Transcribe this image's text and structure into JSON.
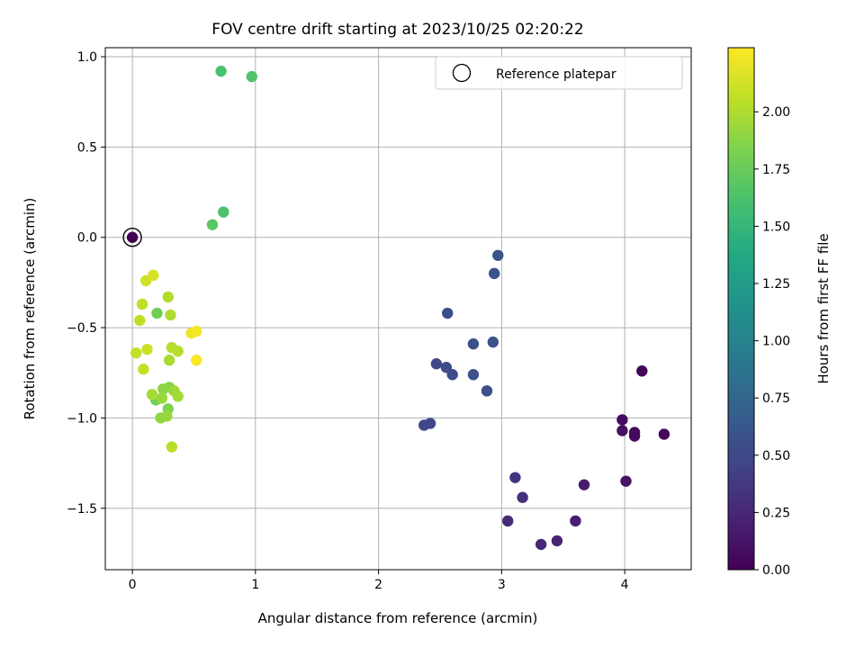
{
  "chart_data": {
    "type": "scatter",
    "title": "FOV centre drift starting at 2023/10/25 02:20:22",
    "xlabel": "Angular distance from reference (arcmin)",
    "ylabel": "Rotation from reference (arcmin)",
    "xlim": [
      -0.22,
      4.54
    ],
    "ylim": [
      -1.84,
      1.05
    ],
    "xticks": [
      "0",
      "1",
      "2",
      "3",
      "4"
    ],
    "yticks": [
      "−1.5",
      "−1.0",
      "−0.5",
      "0.0",
      "0.5",
      "1.0"
    ],
    "grid": true,
    "legend": {
      "position": "top-right",
      "label": "Reference platepar"
    },
    "reference_point": {
      "x": 0.0,
      "y": 0.0
    },
    "colorbar": {
      "label": "Hours from first FF file",
      "colormap": "viridis",
      "range": [
        0.0,
        2.28
      ],
      "ticks": [
        "0.00",
        "0.25",
        "0.50",
        "0.75",
        "1.00",
        "1.25",
        "1.50",
        "1.75",
        "2.00"
      ]
    },
    "points": [
      {
        "x": 4.14,
        "y": -0.74,
        "c": 0.02
      },
      {
        "x": 4.32,
        "y": -1.09,
        "c": 0.03
      },
      {
        "x": 4.08,
        "y": -1.08,
        "c": 0.05
      },
      {
        "x": 4.08,
        "y": -1.1,
        "c": 0.06
      },
      {
        "x": 3.98,
        "y": -1.01,
        "c": 0.08
      },
      {
        "x": 3.98,
        "y": -1.07,
        "c": 0.09
      },
      {
        "x": 4.01,
        "y": -1.35,
        "c": 0.12
      },
      {
        "x": 3.67,
        "y": -1.37,
        "c": 0.16
      },
      {
        "x": 3.6,
        "y": -1.57,
        "c": 0.2
      },
      {
        "x": 3.45,
        "y": -1.68,
        "c": 0.22
      },
      {
        "x": 3.32,
        "y": -1.7,
        "c": 0.24
      },
      {
        "x": 3.05,
        "y": -1.57,
        "c": 0.28
      },
      {
        "x": 3.17,
        "y": -1.44,
        "c": 0.31
      },
      {
        "x": 3.11,
        "y": -1.33,
        "c": 0.34
      },
      {
        "x": 2.37,
        "y": -1.04,
        "c": 0.48
      },
      {
        "x": 2.42,
        "y": -1.03,
        "c": 0.49
      },
      {
        "x": 2.47,
        "y": -0.7,
        "c": 0.51
      },
      {
        "x": 2.55,
        "y": -0.72,
        "c": 0.52
      },
      {
        "x": 2.6,
        "y": -0.76,
        "c": 0.53
      },
      {
        "x": 2.56,
        "y": -0.42,
        "c": 0.54
      },
      {
        "x": 2.77,
        "y": -0.59,
        "c": 0.55
      },
      {
        "x": 2.77,
        "y": -0.76,
        "c": 0.56
      },
      {
        "x": 2.88,
        "y": -0.85,
        "c": 0.56
      },
      {
        "x": 2.93,
        "y": -0.58,
        "c": 0.57
      },
      {
        "x": 2.94,
        "y": -0.2,
        "c": 0.58
      },
      {
        "x": 2.97,
        "y": -0.1,
        "c": 0.59
      },
      {
        "x": 0.72,
        "y": 0.92,
        "c": 1.62
      },
      {
        "x": 0.97,
        "y": 0.89,
        "c": 1.65
      },
      {
        "x": 0.74,
        "y": 0.14,
        "c": 1.63
      },
      {
        "x": 0.65,
        "y": 0.07,
        "c": 1.68
      },
      {
        "x": 0.2,
        "y": -0.42,
        "c": 1.78
      },
      {
        "x": 0.19,
        "y": -0.9,
        "c": 1.8
      },
      {
        "x": 0.29,
        "y": -0.95,
        "c": 1.85
      },
      {
        "x": 0.3,
        "y": -0.83,
        "c": 1.87
      },
      {
        "x": 0.25,
        "y": -0.84,
        "c": 1.88
      },
      {
        "x": 0.23,
        "y": -1.0,
        "c": 1.9
      },
      {
        "x": 0.28,
        "y": -0.99,
        "c": 1.92
      },
      {
        "x": 0.24,
        "y": -0.89,
        "c": 1.93
      },
      {
        "x": 0.34,
        "y": -0.85,
        "c": 1.95
      },
      {
        "x": 0.37,
        "y": -0.88,
        "c": 1.96
      },
      {
        "x": 0.16,
        "y": -0.87,
        "c": 1.97
      },
      {
        "x": 0.3,
        "y": -0.68,
        "c": 1.98
      },
      {
        "x": 0.31,
        "y": -0.43,
        "c": 2.0
      },
      {
        "x": 0.29,
        "y": -0.33,
        "c": 2.01
      },
      {
        "x": 0.32,
        "y": -0.61,
        "c": 2.02
      },
      {
        "x": 0.37,
        "y": -0.63,
        "c": 2.03
      },
      {
        "x": 0.32,
        "y": -1.16,
        "c": 2.04
      },
      {
        "x": 0.06,
        "y": -0.46,
        "c": 2.05
      },
      {
        "x": 0.08,
        "y": -0.37,
        "c": 2.06
      },
      {
        "x": 0.03,
        "y": -0.64,
        "c": 2.07
      },
      {
        "x": 0.09,
        "y": -0.73,
        "c": 2.08
      },
      {
        "x": 0.12,
        "y": -0.62,
        "c": 2.1
      },
      {
        "x": 0.11,
        "y": -0.24,
        "c": 2.12
      },
      {
        "x": 0.17,
        "y": -0.21,
        "c": 2.14
      },
      {
        "x": 0.48,
        "y": -0.53,
        "c": 2.22
      },
      {
        "x": 0.52,
        "y": -0.52,
        "c": 2.25
      },
      {
        "x": 0.52,
        "y": -0.68,
        "c": 2.27
      },
      {
        "x": 0.0,
        "y": 0.0,
        "c": 0.0
      }
    ]
  }
}
